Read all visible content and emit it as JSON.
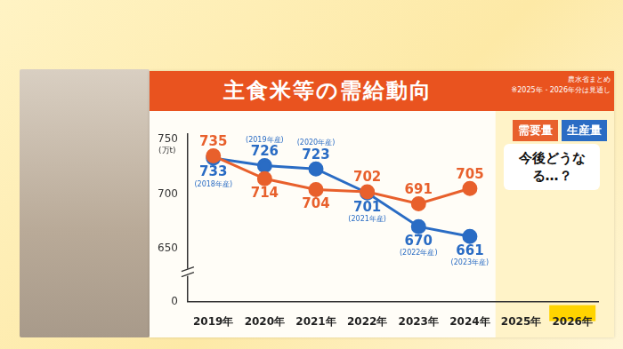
{
  "chart_data": {
    "type": "line",
    "title": "主食米等の需給動向",
    "source": "農水省まとめ",
    "note": "※2025年・2026年分は見通し",
    "y_label": "(万t)",
    "categories": [
      "2019年",
      "2020年",
      "2021年",
      "2022年",
      "2023年",
      "2024年",
      "2025年",
      "2026年"
    ],
    "series": [
      {
        "name": "需要量",
        "color": "#e8602c",
        "values": [
          735,
          714,
          704,
          702,
          691,
          705,
          null,
          null
        ]
      },
      {
        "name": "生産量",
        "color": "#2a6cc4",
        "values": [
          733,
          726,
          723,
          701,
          670,
          661,
          null,
          null
        ]
      }
    ],
    "ylim": [
      0,
      755
    ],
    "yticks": [
      0,
      650,
      700,
      750
    ],
    "grid": false,
    "legend": "top-right",
    "data_labels": true,
    "marker": "circle",
    "annotations": [
      {
        "text": "(2018年産)",
        "series": "生産量",
        "category": "2019年"
      },
      {
        "text": "(2019年産)",
        "series": "生産量",
        "category": "2020年"
      },
      {
        "text": "(2020年産)",
        "series": "生産量",
        "category": "2021年"
      },
      {
        "text": "(2021年産)",
        "series": "生産量",
        "category": "2022年"
      },
      {
        "text": "(2022年産)",
        "series": "生産量",
        "category": "2023年"
      },
      {
        "text": "(2023年産)",
        "series": "生産量",
        "category": "2024年"
      },
      {
        "text": "今後どうなる…？"
      }
    ]
  }
}
